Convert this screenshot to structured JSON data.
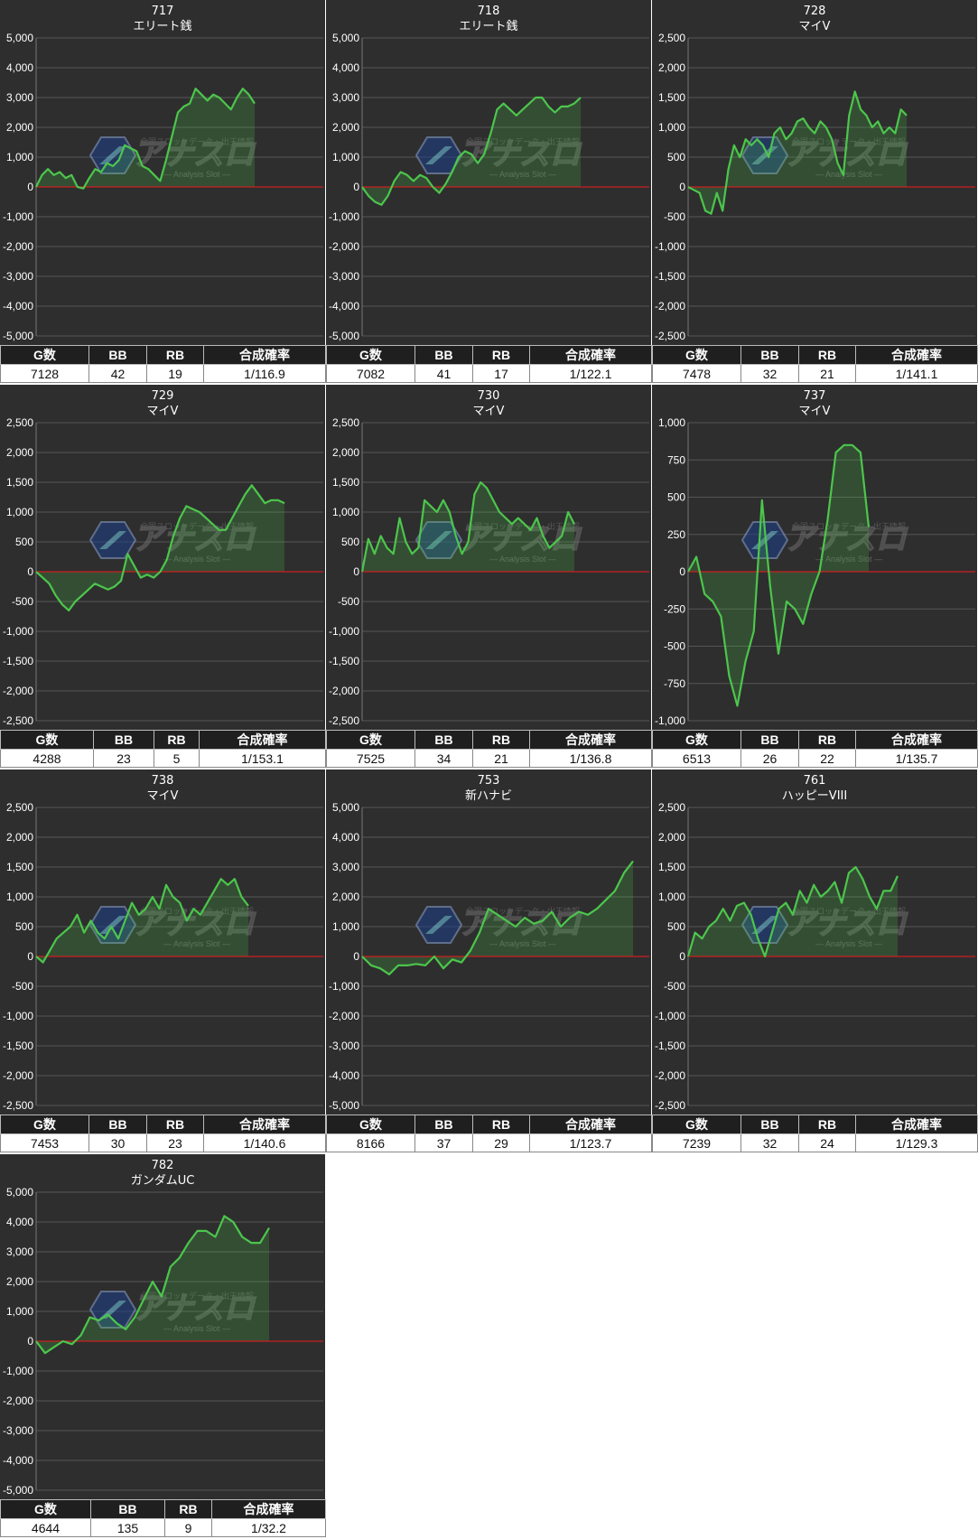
{
  "watermark": {
    "title": "アナスロ",
    "subtitle": "— Analysis Slot —",
    "tagline": "全国スロットデータ・出玉情報"
  },
  "colors": {
    "panel_bg": "#2e2e2e",
    "grid": "#555555",
    "line": "#4cc64c",
    "zero_line": "#cc1f1f",
    "header_bg": "#1f1f1f"
  },
  "headers": [
    "G数",
    "BB",
    "RB",
    "合成確率"
  ],
  "chart_data": [
    {
      "type": "area",
      "machine_no": "717",
      "machine_name": "エリート銭",
      "ylim": [
        -5000,
        5000
      ],
      "yticks": [
        5000,
        4000,
        3000,
        2000,
        1000,
        0,
        -1000,
        -2000,
        -3000,
        -4000,
        -5000
      ],
      "ytick_labels": [
        "5,000",
        "4,000",
        "3,000",
        "2,000",
        "1,000",
        "0",
        "-1,000",
        "-2,000",
        "-3,000",
        "-4,000",
        "-5,000"
      ],
      "values": [
        0,
        400,
        600,
        400,
        500,
        300,
        400,
        0,
        -50,
        300,
        600,
        500,
        800,
        700,
        900,
        1400,
        1300,
        1200,
        700,
        600,
        400,
        200,
        900,
        1700,
        2500,
        2700,
        2800,
        3300,
        3100,
        2900,
        3100,
        3000,
        2800,
        2600,
        3000,
        3300,
        3100,
        2800
      ],
      "stats": {
        "games": "7128",
        "bb": "42",
        "rb": "19",
        "rate": "1/116.9"
      }
    },
    {
      "type": "area",
      "machine_no": "718",
      "machine_name": "エリート銭",
      "ylim": [
        -5000,
        5000
      ],
      "yticks": [
        5000,
        4000,
        3000,
        2000,
        1000,
        0,
        -1000,
        -2000,
        -3000,
        -4000,
        -5000
      ],
      "ytick_labels": [
        "5,000",
        "4,000",
        "3,000",
        "2,000",
        "1,000",
        "0",
        "-1,000",
        "-2,000",
        "-3,000",
        "-4,000",
        "-5,000"
      ],
      "values": [
        0,
        -300,
        -500,
        -600,
        -300,
        200,
        500,
        400,
        200,
        400,
        300,
        0,
        -200,
        100,
        500,
        1000,
        1200,
        1100,
        800,
        1100,
        1800,
        2600,
        2800,
        2600,
        2400,
        2600,
        2800,
        3000,
        3000,
        2700,
        2500,
        2700,
        2700,
        2800,
        3000
      ],
      "stats": {
        "games": "7082",
        "bb": "41",
        "rb": "17",
        "rate": "1/122.1"
      }
    },
    {
      "type": "area",
      "machine_no": "728",
      "machine_name": "マイV",
      "ylim": [
        -2500,
        2500
      ],
      "yticks": [
        2500,
        2000,
        1500,
        1000,
        500,
        0,
        -500,
        -1000,
        -1500,
        -2000,
        -2500
      ],
      "ytick_labels": [
        "2,500",
        "2,000",
        "1,500",
        "1,000",
        "500",
        "0",
        "-500",
        "-1,000",
        "-1,500",
        "-2,000",
        "-2,500"
      ],
      "values": [
        0,
        -50,
        -100,
        -400,
        -450,
        -100,
        -400,
        300,
        700,
        500,
        800,
        700,
        800,
        700,
        500,
        900,
        1000,
        800,
        900,
        1100,
        1150,
        1000,
        900,
        1100,
        1000,
        800,
        400,
        200,
        1200,
        1600,
        1300,
        1200,
        1000,
        1100,
        900,
        1000,
        900,
        1300,
        1200
      ],
      "stats": {
        "games": "7478",
        "bb": "32",
        "rb": "21",
        "rate": "1/141.1"
      }
    },
    {
      "type": "area",
      "machine_no": "729",
      "machine_name": "マイV",
      "ylim": [
        -2500,
        2500
      ],
      "yticks": [
        2500,
        2000,
        1500,
        1000,
        500,
        0,
        -500,
        -1000,
        -1500,
        -2000,
        -2500
      ],
      "ytick_labels": [
        "2,500",
        "2,000",
        "1,500",
        "1,000",
        "500",
        "0",
        "-500",
        "-1,000",
        "-1,500",
        "-2,000",
        "-2,500"
      ],
      "values": [
        0,
        -100,
        -200,
        -400,
        -550,
        -650,
        -500,
        -400,
        -300,
        -200,
        -250,
        -300,
        -250,
        -150,
        300,
        100,
        -100,
        -50,
        -100,
        0,
        200,
        600,
        900,
        1100,
        1050,
        1000,
        900,
        800,
        700,
        700,
        900,
        1100,
        1300,
        1450,
        1300,
        1150,
        1200,
        1200,
        1150
      ],
      "stats": {
        "games": "4288",
        "bb": "23",
        "rb": "5",
        "rate": "1/153.1"
      }
    },
    {
      "type": "area",
      "machine_no": "730",
      "machine_name": "マイV",
      "ylim": [
        -2500,
        2500
      ],
      "yticks": [
        2500,
        2000,
        1500,
        1000,
        500,
        0,
        -500,
        -1000,
        -1500,
        -2000,
        -2500
      ],
      "ytick_labels": [
        "2,500",
        "2,000",
        "1,500",
        "1,000",
        "500",
        "0",
        "-500",
        "-1,000",
        "-1,500",
        "-2,000",
        "-2,500"
      ],
      "values": [
        0,
        550,
        300,
        600,
        400,
        300,
        900,
        500,
        300,
        400,
        1200,
        1100,
        1000,
        1200,
        1000,
        600,
        300,
        500,
        1300,
        1500,
        1400,
        1200,
        1000,
        900,
        800,
        900,
        800,
        700,
        900,
        600,
        400,
        500,
        600,
        1000,
        800
      ],
      "stats": {
        "games": "7525",
        "bb": "34",
        "rb": "21",
        "rate": "1/136.8"
      }
    },
    {
      "type": "area",
      "machine_no": "737",
      "machine_name": "マイV",
      "ylim": [
        -1000,
        1000
      ],
      "yticks": [
        1000,
        750,
        500,
        250,
        0,
        -250,
        -500,
        -750,
        -1000
      ],
      "ytick_labels": [
        "1,000",
        "750",
        "500",
        "250",
        "0",
        "-250",
        "-500",
        "-750",
        "-1,000"
      ],
      "values": [
        0,
        100,
        -150,
        -200,
        -300,
        -700,
        -900,
        -600,
        -400,
        480,
        -100,
        -550,
        -200,
        -250,
        -350,
        -150,
        0,
        350,
        800,
        850,
        850,
        800,
        300
      ],
      "stats": {
        "games": "6513",
        "bb": "26",
        "rb": "22",
        "rate": "1/135.7"
      }
    },
    {
      "type": "area",
      "machine_no": "738",
      "machine_name": "マイV",
      "ylim": [
        -2500,
        2500
      ],
      "yticks": [
        2500,
        2000,
        1500,
        1000,
        500,
        0,
        -500,
        -1000,
        -1500,
        -2000,
        -2500
      ],
      "ytick_labels": [
        "2,500",
        "2,000",
        "1,500",
        "1,000",
        "500",
        "0",
        "-500",
        "-1,000",
        "-1,500",
        "-2,000",
        "-2,500"
      ],
      "values": [
        0,
        -100,
        100,
        300,
        400,
        500,
        700,
        400,
        600,
        400,
        300,
        500,
        300,
        600,
        900,
        700,
        800,
        1000,
        800,
        1200,
        1000,
        900,
        600,
        800,
        700,
        900,
        1100,
        1300,
        1200,
        1300,
        1000,
        850
      ],
      "stats": {
        "games": "7453",
        "bb": "30",
        "rb": "23",
        "rate": "1/140.6"
      }
    },
    {
      "type": "area",
      "machine_no": "753",
      "machine_name": "新ハナビ",
      "ylim": [
        -5000,
        5000
      ],
      "yticks": [
        5000,
        4000,
        3000,
        2000,
        1000,
        0,
        -1000,
        -2000,
        -3000,
        -4000,
        -5000
      ],
      "ytick_labels": [
        "5,000",
        "4,000",
        "3,000",
        "2,000",
        "1,000",
        "0",
        "-1,000",
        "-2,000",
        "-3,000",
        "-4,000",
        "-5,000"
      ],
      "values": [
        0,
        -300,
        -400,
        -600,
        -300,
        -300,
        -250,
        -300,
        0,
        -400,
        -100,
        -200,
        200,
        800,
        1600,
        1400,
        1200,
        1000,
        1300,
        1100,
        1200,
        1500,
        1000,
        1300,
        1500,
        1400,
        1600,
        1900,
        2200,
        2800,
        3200
      ],
      "stats": {
        "games": "8166",
        "bb": "37",
        "rb": "29",
        "rate": "1/123.7"
      }
    },
    {
      "type": "area",
      "machine_no": "761",
      "machine_name": "ハッピーVIII",
      "ylim": [
        -2500,
        2500
      ],
      "yticks": [
        2500,
        2000,
        1500,
        1000,
        500,
        0,
        -500,
        -1000,
        -1500,
        -2000,
        -2500
      ],
      "ytick_labels": [
        "2,500",
        "2,000",
        "1,500",
        "1,000",
        "500",
        "0",
        "-500",
        "-1,000",
        "-1,500",
        "-2,000",
        "-2,500"
      ],
      "values": [
        0,
        400,
        300,
        500,
        600,
        800,
        600,
        850,
        900,
        700,
        300,
        0,
        400,
        800,
        900,
        700,
        1100,
        900,
        1200,
        1000,
        1100,
        1250,
        900,
        1400,
        1500,
        1300,
        1000,
        800,
        1100,
        1100,
        1350
      ],
      "stats": {
        "games": "7239",
        "bb": "32",
        "rb": "24",
        "rate": "1/129.3"
      }
    },
    {
      "type": "area",
      "machine_no": "782",
      "machine_name": "ガンダムUC",
      "ylim": [
        -5000,
        5000
      ],
      "yticks": [
        5000,
        4000,
        3000,
        2000,
        1000,
        0,
        -1000,
        -2000,
        -3000,
        -4000,
        -5000
      ],
      "ytick_labels": [
        "5,000",
        "4,000",
        "3,000",
        "2,000",
        "1,000",
        "0",
        "-1,000",
        "-2,000",
        "-3,000",
        "-4,000",
        "-5,000"
      ],
      "values": [
        0,
        -400,
        -200,
        0,
        -100,
        200,
        800,
        700,
        900,
        600,
        400,
        800,
        1400,
        2000,
        1500,
        2500,
        2800,
        3300,
        3700,
        3700,
        3500,
        4200,
        4000,
        3500,
        3300,
        3300,
        3800
      ],
      "stats": {
        "games": "4644",
        "bb": "135",
        "rb": "9",
        "rate": "1/32.2"
      }
    }
  ]
}
